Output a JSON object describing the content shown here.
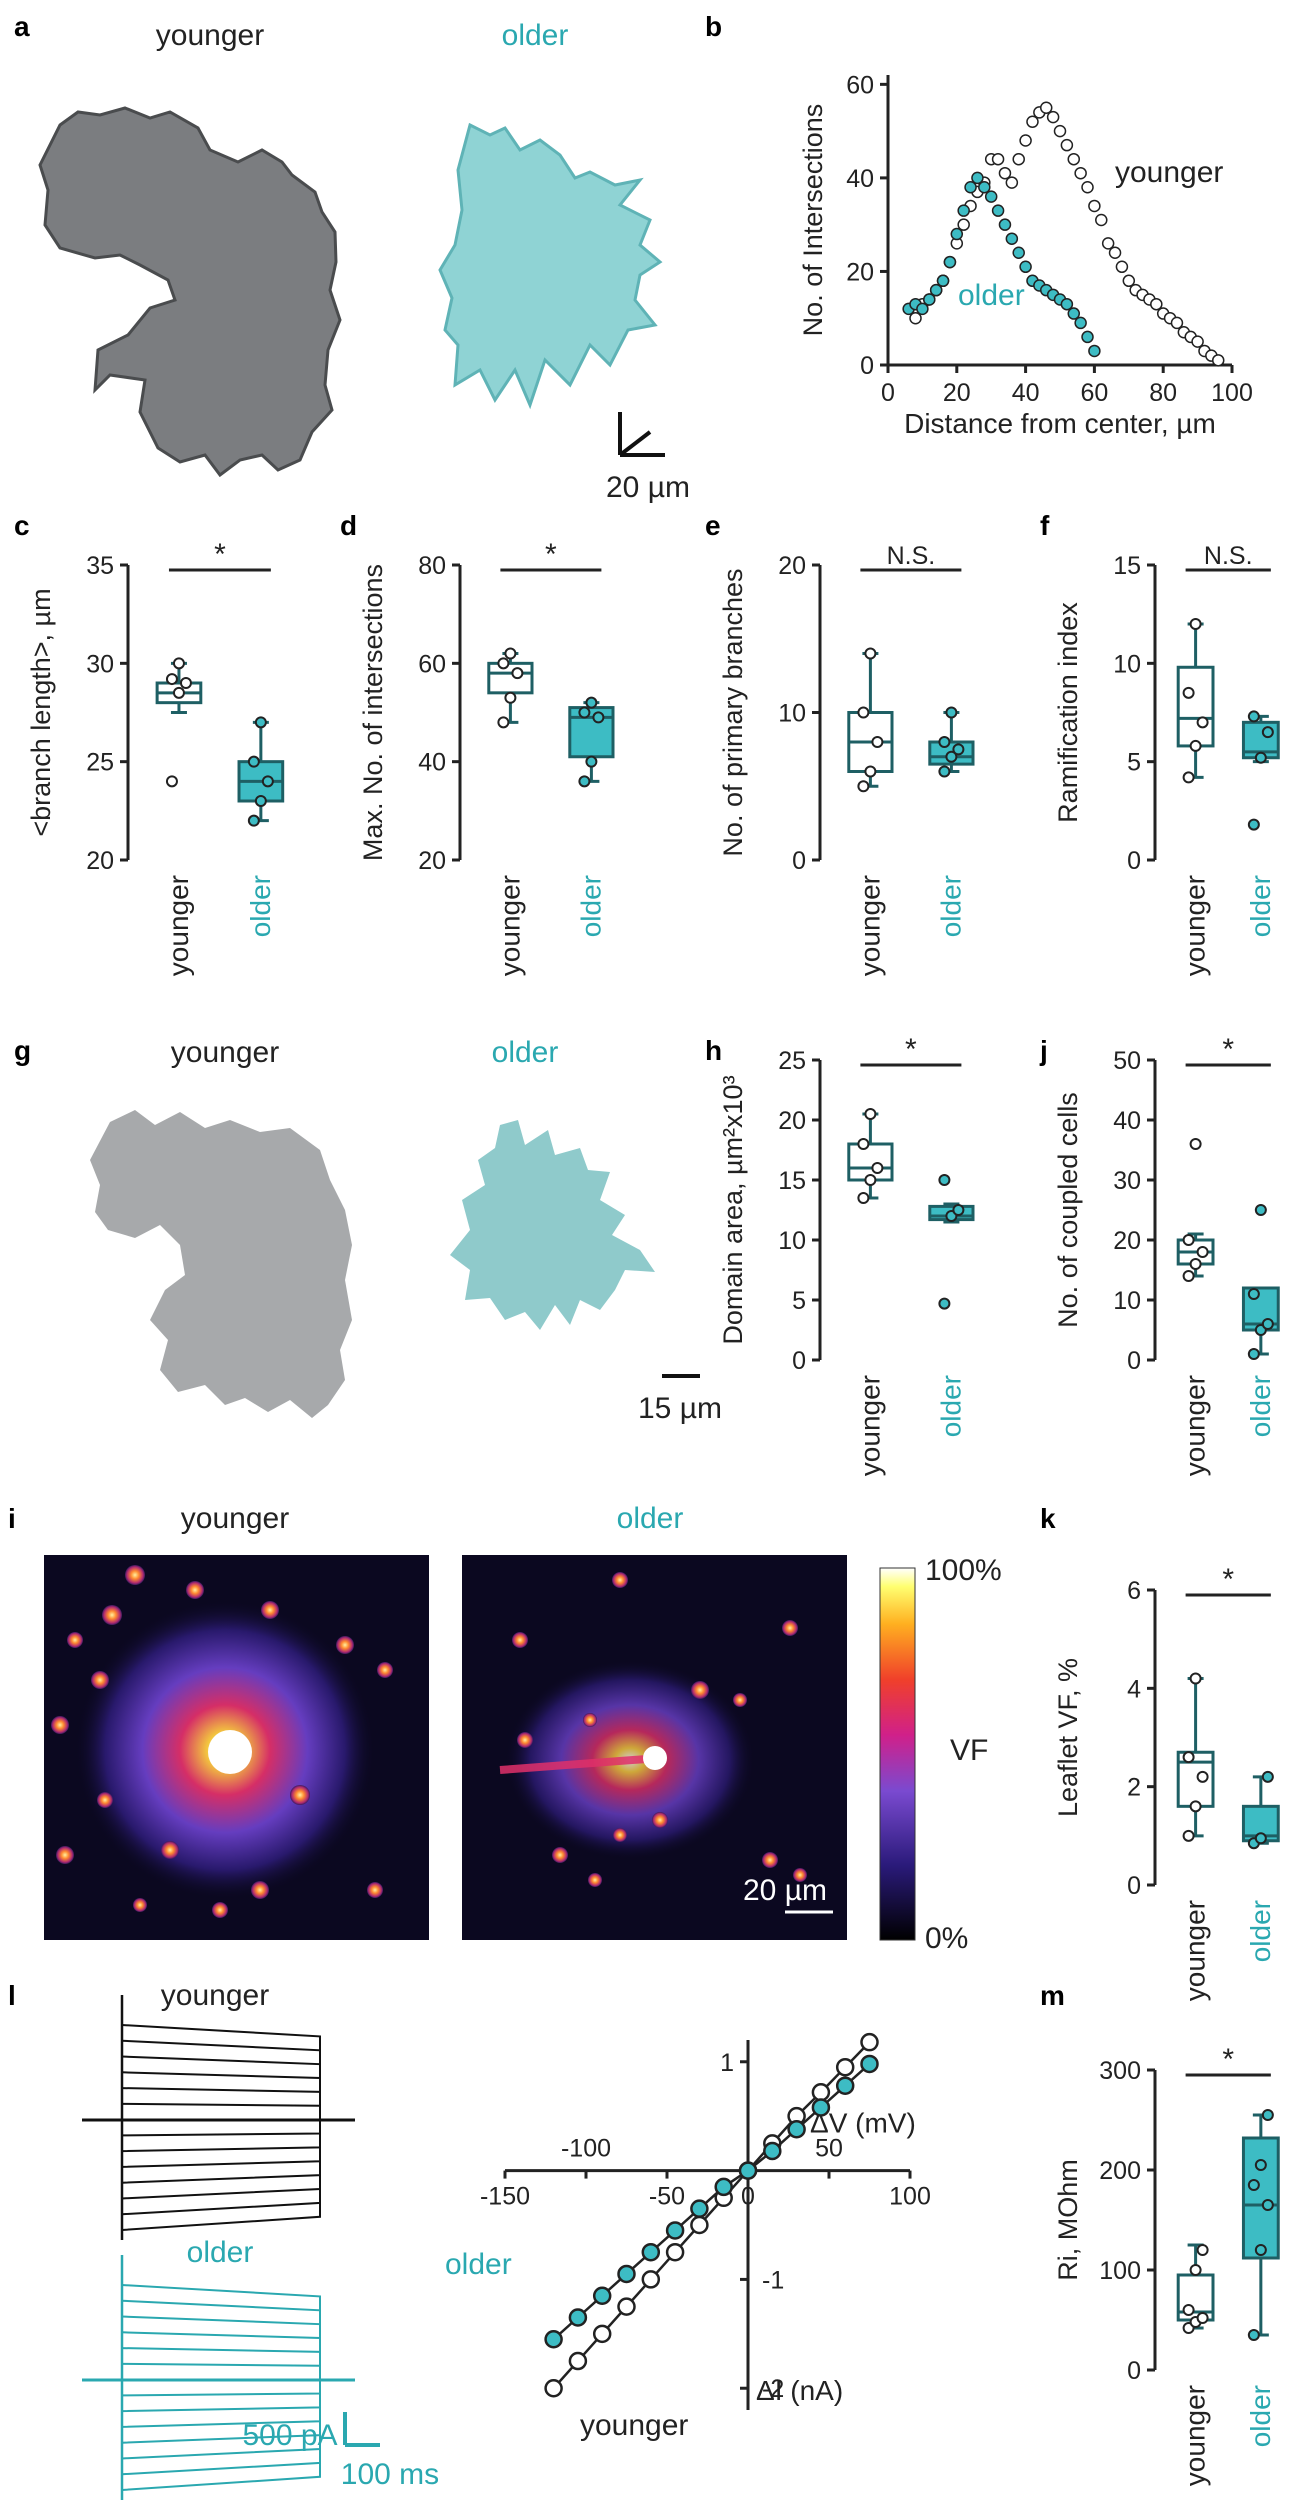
{
  "colors": {
    "younger": "#ffffff",
    "older": "#3dbcc4",
    "box": "#1e5f64",
    "ink": "#222222",
    "cell_gray": "#a7a9ab",
    "cell_teal": "#8fcacb"
  },
  "panels": {
    "a": {
      "label": "a",
      "younger": "younger",
      "older": "older",
      "scale": "20 µm"
    },
    "b": {
      "label": "b"
    },
    "c": {
      "label": "c"
    },
    "d": {
      "label": "d"
    },
    "e": {
      "label": "e"
    },
    "f": {
      "label": "f"
    },
    "g": {
      "label": "g",
      "younger": "younger",
      "older": "older",
      "scale": "15 µm"
    },
    "h": {
      "label": "h"
    },
    "j": {
      "label": "j"
    },
    "i": {
      "label": "i",
      "younger": "younger",
      "older": "older",
      "scale": "20 µm",
      "cb_top": "100%",
      "cb_mid": "VF",
      "cb_bot": "0%"
    },
    "k": {
      "label": "k"
    },
    "l": {
      "label": "l",
      "younger": "younger",
      "older": "older",
      "scale_pa": "500 pA",
      "scale_ms": "100 ms"
    },
    "m": {
      "label": "m"
    }
  },
  "chart_data": [
    {
      "id": "b",
      "type": "scatter",
      "xlabel": "Distance from center, µm",
      "ylabel": "No. of Intersections",
      "xlim": [
        0,
        100
      ],
      "ylim": [
        0,
        62
      ],
      "xticks": [
        "0",
        "20",
        "40",
        "60",
        "80",
        "100"
      ],
      "yticks": [
        "0",
        "20",
        "40",
        "60"
      ],
      "series": [
        {
          "name": "younger",
          "points": [
            [
              8,
              10
            ],
            [
              10,
              13
            ],
            [
              12,
              14
            ],
            [
              14,
              16
            ],
            [
              16,
              18
            ],
            [
              18,
              22
            ],
            [
              20,
              26
            ],
            [
              22,
              30
            ],
            [
              24,
              34
            ],
            [
              26,
              37
            ],
            [
              28,
              39
            ],
            [
              30,
              44
            ],
            [
              32,
              44
            ],
            [
              34,
              41
            ],
            [
              36,
              39
            ],
            [
              38,
              44
            ],
            [
              40,
              48
            ],
            [
              42,
              52
            ],
            [
              44,
              54
            ],
            [
              46,
              55
            ],
            [
              48,
              53
            ],
            [
              50,
              50
            ],
            [
              52,
              47
            ],
            [
              54,
              44
            ],
            [
              56,
              41
            ],
            [
              58,
              38
            ],
            [
              60,
              34
            ],
            [
              62,
              31
            ],
            [
              64,
              26
            ],
            [
              66,
              24
            ],
            [
              68,
              21
            ],
            [
              70,
              18
            ],
            [
              72,
              16
            ],
            [
              74,
              15
            ],
            [
              76,
              14
            ],
            [
              78,
              13
            ],
            [
              80,
              11
            ],
            [
              82,
              10
            ],
            [
              84,
              9
            ],
            [
              86,
              7
            ],
            [
              88,
              6
            ],
            [
              90,
              5
            ],
            [
              92,
              3
            ],
            [
              94,
              2
            ],
            [
              96,
              1
            ]
          ]
        },
        {
          "name": "older",
          "points": [
            [
              6,
              12
            ],
            [
              8,
              13
            ],
            [
              10,
              12
            ],
            [
              12,
              14
            ],
            [
              14,
              16
            ],
            [
              16,
              18
            ],
            [
              18,
              22
            ],
            [
              20,
              28
            ],
            [
              22,
              33
            ],
            [
              24,
              38
            ],
            [
              26,
              40
            ],
            [
              28,
              38
            ],
            [
              30,
              36
            ],
            [
              32,
              33
            ],
            [
              34,
              30
            ],
            [
              36,
              27
            ],
            [
              38,
              24
            ],
            [
              40,
              21
            ],
            [
              42,
              18
            ],
            [
              44,
              17
            ],
            [
              46,
              16
            ],
            [
              48,
              15
            ],
            [
              50,
              14
            ],
            [
              52,
              13
            ],
            [
              54,
              11
            ],
            [
              56,
              9
            ],
            [
              58,
              6
            ],
            [
              60,
              3
            ]
          ]
        }
      ],
      "annotations": [
        "younger",
        "older"
      ]
    },
    {
      "id": "c",
      "type": "box",
      "ylabel": "<branch length>, µm",
      "ylim": [
        20,
        35
      ],
      "yticks": [
        "20",
        "25",
        "30",
        "35"
      ],
      "categories": [
        "younger",
        "older"
      ],
      "significance": "*",
      "boxes": [
        {
          "min": 27.5,
          "q1": 28.0,
          "median": 28.5,
          "q3": 29.0,
          "max": 30.0,
          "points": [
            24,
            28.5,
            29,
            29.2,
            30
          ]
        },
        {
          "min": 22.0,
          "q1": 23.0,
          "median": 24.0,
          "q3": 25.0,
          "max": 27.0,
          "points": [
            22,
            23,
            24,
            25,
            27
          ]
        }
      ]
    },
    {
      "id": "d",
      "type": "box",
      "ylabel": "Max. No. of intersections",
      "ylim": [
        20,
        80
      ],
      "yticks": [
        "20",
        "40",
        "60",
        "80"
      ],
      "categories": [
        "younger",
        "older"
      ],
      "significance": "*",
      "boxes": [
        {
          "min": 48,
          "q1": 54,
          "median": 58,
          "q3": 60,
          "max": 62,
          "points": [
            48,
            53,
            58,
            60,
            62
          ]
        },
        {
          "min": 36,
          "q1": 41,
          "median": 49,
          "q3": 51,
          "max": 52,
          "points": [
            36,
            40,
            49,
            50,
            52
          ]
        }
      ]
    },
    {
      "id": "e",
      "type": "box",
      "ylabel": "No. of primary branches",
      "ylim": [
        0,
        20
      ],
      "yticks": [
        "0",
        "10",
        "20"
      ],
      "categories": [
        "younger",
        "older"
      ],
      "significance": "N.S.",
      "boxes": [
        {
          "min": 5,
          "q1": 6,
          "median": 8,
          "q3": 10,
          "max": 14,
          "points": [
            5,
            6,
            8,
            10,
            14
          ]
        },
        {
          "min": 6,
          "q1": 6.5,
          "median": 7,
          "q3": 8,
          "max": 10,
          "points": [
            6,
            7,
            7.5,
            8,
            10
          ]
        }
      ]
    },
    {
      "id": "f",
      "type": "box",
      "ylabel": "Ramification index",
      "ylim": [
        0,
        15
      ],
      "yticks": [
        "0",
        "5",
        "10",
        "15"
      ],
      "categories": [
        "younger",
        "older"
      ],
      "significance": "N.S.",
      "boxes": [
        {
          "min": 4.2,
          "q1": 5.8,
          "median": 7.2,
          "q3": 9.8,
          "max": 12,
          "points": [
            4.2,
            5.8,
            7,
            8.5,
            12
          ]
        },
        {
          "min": 5.0,
          "q1": 5.2,
          "median": 5.5,
          "q3": 7.0,
          "max": 7.3,
          "points": [
            1.8,
            5.2,
            6.5,
            7.3
          ]
        }
      ]
    },
    {
      "id": "h",
      "type": "box",
      "ylabel": "Domain area, µm²x10³",
      "ylim": [
        0,
        25
      ],
      "yticks": [
        "0",
        "5",
        "10",
        "15",
        "20",
        "25"
      ],
      "categories": [
        "younger",
        "older"
      ],
      "significance": "*",
      "boxes": [
        {
          "min": 13.5,
          "q1": 15.0,
          "median": 16.0,
          "q3": 18.0,
          "max": 20.5,
          "points": [
            13.5,
            15,
            16,
            18,
            20.5
          ]
        },
        {
          "min": 11.5,
          "q1": 11.7,
          "median": 12.0,
          "q3": 12.8,
          "max": 13.0,
          "points": [
            4.7,
            12,
            12.5,
            15
          ]
        }
      ]
    },
    {
      "id": "j",
      "type": "box",
      "ylabel": "No. of coupled cells",
      "ylim": [
        0,
        50
      ],
      "yticks": [
        "0",
        "10",
        "20",
        "30",
        "40",
        "50"
      ],
      "categories": [
        "younger",
        "older"
      ],
      "significance": "*",
      "boxes": [
        {
          "min": 14,
          "q1": 16,
          "median": 18,
          "q3": 20,
          "max": 21,
          "points": [
            14,
            16,
            18,
            20,
            36
          ]
        },
        {
          "min": 1,
          "q1": 5,
          "median": 6,
          "q3": 12,
          "max": 12,
          "points": [
            1,
            5,
            6,
            11,
            25
          ]
        }
      ]
    },
    {
      "id": "k",
      "type": "box",
      "ylabel": "Leaflet VF, %",
      "ylim": [
        0,
        6
      ],
      "yticks": [
        "0",
        "2",
        "4",
        "6"
      ],
      "categories": [
        "younger",
        "older"
      ],
      "significance": "*",
      "boxes": [
        {
          "min": 1.0,
          "q1": 1.6,
          "median": 2.5,
          "q3": 2.7,
          "max": 4.2,
          "points": [
            1.0,
            1.6,
            2.2,
            2.6,
            4.2
          ]
        },
        {
          "min": 0.85,
          "q1": 0.9,
          "median": 1.0,
          "q3": 1.6,
          "max": 2.2,
          "points": [
            0.85,
            0.95,
            2.2
          ]
        }
      ]
    },
    {
      "id": "m",
      "type": "box",
      "ylabel": "Ri, MOhm",
      "ylim": [
        0,
        300
      ],
      "yticks": [
        "0",
        "100",
        "200",
        "300"
      ],
      "categories": [
        "younger",
        "older"
      ],
      "significance": "*",
      "boxes": [
        {
          "min": 42,
          "q1": 50,
          "median": 58,
          "q3": 95,
          "max": 125,
          "points": [
            42,
            48,
            52,
            60,
            100,
            120
          ]
        },
        {
          "min": 35,
          "q1": 112,
          "median": 165,
          "q3": 232,
          "max": 255,
          "points": [
            35,
            120,
            165,
            185,
            205,
            255
          ]
        }
      ]
    },
    {
      "id": "l_iv",
      "type": "line",
      "xlabel": "ΔV (mV)",
      "ylabel": "ΔI (nA)",
      "xlim": [
        -150,
        100
      ],
      "ylim": [
        -2.2,
        1.2
      ],
      "xticks": [
        "-150",
        "-100",
        "-50",
        "0",
        "50",
        "100"
      ],
      "yticks": [
        "-2",
        "-1",
        "1"
      ],
      "series": [
        {
          "name": "younger",
          "x": [
            -120,
            -105,
            -90,
            -75,
            -60,
            -45,
            -30,
            -15,
            0,
            15,
            30,
            45,
            60,
            75
          ],
          "y": [
            -2.0,
            -1.75,
            -1.5,
            -1.25,
            -1.0,
            -0.75,
            -0.5,
            -0.25,
            0.0,
            0.25,
            0.5,
            0.72,
            0.95,
            1.18
          ]
        },
        {
          "name": "older",
          "x": [
            -120,
            -105,
            -90,
            -75,
            -60,
            -45,
            -30,
            -15,
            0,
            15,
            30,
            45,
            60,
            75
          ],
          "y": [
            -1.55,
            -1.35,
            -1.15,
            -0.95,
            -0.75,
            -0.55,
            -0.35,
            -0.15,
            0.0,
            0.18,
            0.38,
            0.58,
            0.78,
            0.98
          ]
        }
      ]
    }
  ]
}
